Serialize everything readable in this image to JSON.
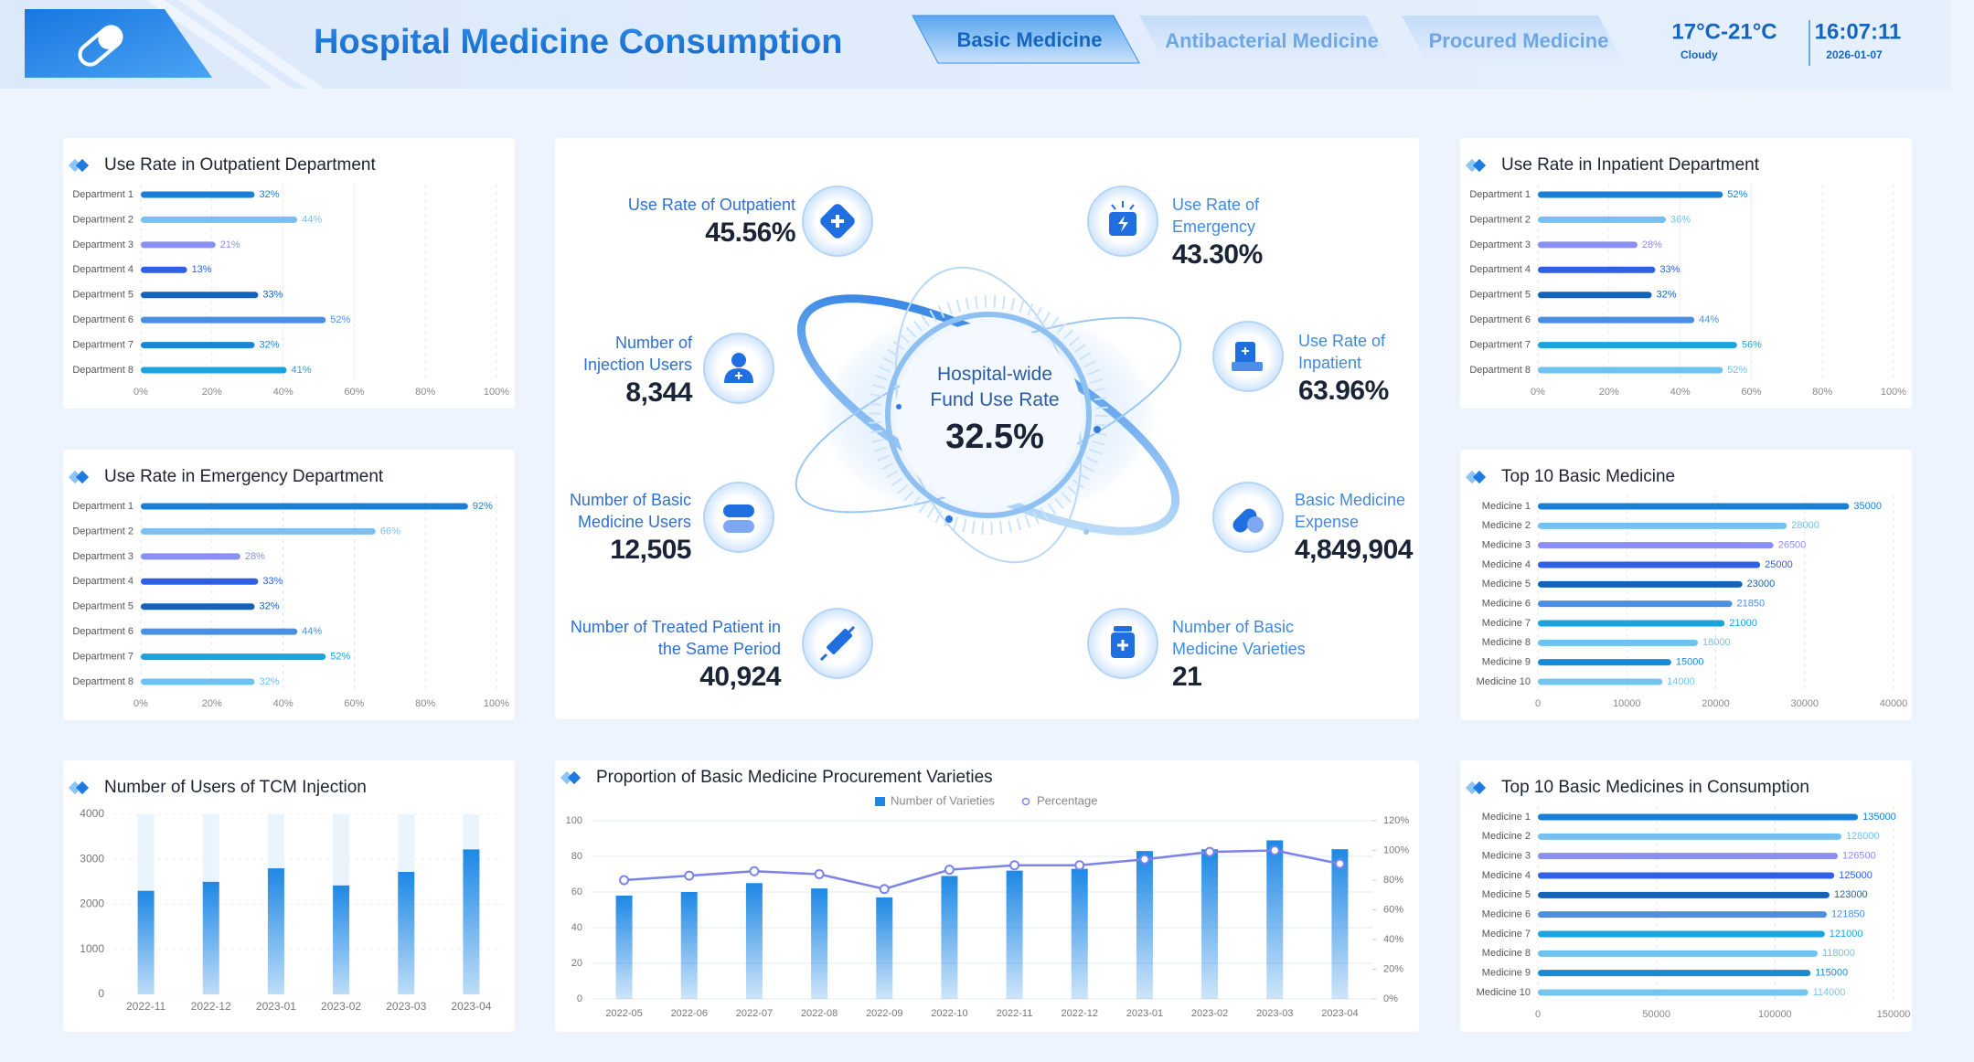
{
  "header": {
    "title": "Hospital Medicine Consumption",
    "tabs": [
      "Basic Medicine",
      "Antibacterial Medicine",
      "Procured Medicine"
    ],
    "weather": {
      "temperature": "17°C-21°C",
      "condition": "Cloudy"
    },
    "time": "16:07:11",
    "date": "2026-01-07"
  },
  "center": {
    "label": "Hospital-wide Fund Use Rate",
    "value": "32.5%"
  },
  "kpis": [
    {
      "label": "Use Rate of Outpatient",
      "value": "45.56%"
    },
    {
      "label": "Use Rate of Emergency",
      "value": "43.30%"
    },
    {
      "label": "Number of Injection Users",
      "value": "8,344"
    },
    {
      "label": "Use Rate of Inpatient",
      "value": "63.96%"
    },
    {
      "label": "Number of Basic Medicine Users",
      "value": "12,505"
    },
    {
      "label": "Basic Medicine Expense",
      "value": "4,849,904"
    },
    {
      "label": "Number of Treated Patient in the Same Period",
      "value": "40,924"
    },
    {
      "label": "Number of Basic Medicine Varieties",
      "value": "21"
    }
  ],
  "chart_data": [
    {
      "type": "hbar",
      "title": "Use Rate in Outpatient Department",
      "categories": [
        "Department 1",
        "Department 2",
        "Department 3",
        "Department 4",
        "Department 5",
        "Department 6",
        "Department 7",
        "Department 8"
      ],
      "values": [
        32,
        44,
        21,
        13,
        33,
        52,
        32,
        41
      ],
      "value_labels": [
        "32%",
        "44%",
        "21%",
        "13%",
        "33%",
        "52%",
        "32%",
        "41%"
      ],
      "colors": [
        "#1a7fd6",
        "#74c0f0",
        "#8b8ef2",
        "#2f5fe3",
        "#1463b8",
        "#4b8fe0",
        "#1b86d8",
        "#1aa3dc"
      ],
      "xlim": [
        0,
        100
      ],
      "xticks": [
        {
          "value": 0,
          "label": "0%"
        },
        {
          "value": 20,
          "label": "20%"
        },
        {
          "value": 40,
          "label": "40%"
        },
        {
          "value": 60,
          "label": "60%"
        },
        {
          "value": 80,
          "label": "80%"
        },
        {
          "value": 100,
          "label": "100%"
        }
      ],
      "grid": true
    },
    {
      "type": "hbar",
      "title": "Use Rate in Emergency Department",
      "categories": [
        "Department 1",
        "Department 2",
        "Department 3",
        "Department 4",
        "Department 5",
        "Department 6",
        "Department 7",
        "Department 8"
      ],
      "values": [
        92,
        66,
        28,
        33,
        32,
        44,
        52,
        32
      ],
      "value_labels": [
        "92%",
        "66%",
        "28%",
        "33%",
        "32%",
        "44%",
        "52%",
        "32%"
      ],
      "colors": [
        "#1a7fd6",
        "#7cc0f2",
        "#8b8ef2",
        "#2f5fe3",
        "#1463b8",
        "#4b8fe0",
        "#1aa3dc",
        "#6ec2f0"
      ],
      "xlim": [
        0,
        100
      ],
      "xticks": [
        {
          "value": 0,
          "label": "0%"
        },
        {
          "value": 20,
          "label": "20%"
        },
        {
          "value": 40,
          "label": "40%"
        },
        {
          "value": 60,
          "label": "60%"
        },
        {
          "value": 80,
          "label": "80%"
        },
        {
          "value": 100,
          "label": "100%"
        }
      ],
      "grid": true
    },
    {
      "type": "bar",
      "title": "Number of Users of TCM Injection",
      "categories": [
        "2022-11",
        "2022-12",
        "2023-01",
        "2023-02",
        "2023-03",
        "2023-04"
      ],
      "values": [
        2300,
        2500,
        2800,
        2420,
        2720,
        3220
      ],
      "color": "#1e88e5",
      "ylim": [
        0,
        4000
      ],
      "yticks": [
        0,
        1000,
        2000,
        3000,
        4000
      ],
      "grid": true
    },
    {
      "type": "combo",
      "title": "Proportion of Basic Medicine Procurement Varieties",
      "categories": [
        "2022-05",
        "2022-06",
        "2022-07",
        "2022-08",
        "2022-09",
        "2022-10",
        "2022-11",
        "2022-12",
        "2023-01",
        "2023-02",
        "2023-03",
        "2023-04"
      ],
      "series": [
        {
          "name": "Number of Varieties",
          "type": "bar",
          "color": "#1e88e5",
          "values": [
            58,
            60,
            65,
            62,
            57,
            69,
            72,
            73,
            83,
            84,
            89,
            84
          ]
        },
        {
          "name": "Percentage",
          "type": "line",
          "axis": "y2",
          "color": "#7b83eb",
          "values": [
            80,
            83,
            86,
            84,
            74,
            87,
            90,
            90,
            94,
            99,
            100,
            91
          ]
        }
      ],
      "ylim": [
        0,
        100
      ],
      "yticks": [
        0,
        20,
        40,
        60,
        80,
        100
      ],
      "y2lim": [
        0,
        120
      ],
      "y2ticks": [
        {
          "value": 0,
          "label": "0%"
        },
        {
          "value": 20,
          "label": "20%"
        },
        {
          "value": 40,
          "label": "40%"
        },
        {
          "value": 60,
          "label": "60%"
        },
        {
          "value": 80,
          "label": "80%"
        },
        {
          "value": 100,
          "label": "100%"
        },
        {
          "value": 120,
          "label": "120%"
        }
      ],
      "grid": true,
      "legend": "top"
    },
    {
      "type": "hbar",
      "title": "Use Rate in Inpatient Department",
      "categories": [
        "Department 1",
        "Department 2",
        "Department 3",
        "Department 4",
        "Department 5",
        "Department 6",
        "Department 7",
        "Department 8"
      ],
      "values": [
        52,
        36,
        28,
        33,
        32,
        44,
        56,
        52
      ],
      "value_labels": [
        "52%",
        "36%",
        "28%",
        "33%",
        "32%",
        "44%",
        "56%",
        "52%"
      ],
      "colors": [
        "#1a7fd6",
        "#74c0f0",
        "#8b8ef2",
        "#2f5fe3",
        "#1463b8",
        "#4b8fe0",
        "#1aa3dc",
        "#6ec2f0"
      ],
      "xlim": [
        0,
        100
      ],
      "xticks": [
        {
          "value": 0,
          "label": "0%"
        },
        {
          "value": 20,
          "label": "20%"
        },
        {
          "value": 40,
          "label": "40%"
        },
        {
          "value": 60,
          "label": "60%"
        },
        {
          "value": 80,
          "label": "80%"
        },
        {
          "value": 100,
          "label": "100%"
        }
      ],
      "grid": true
    },
    {
      "type": "hbar",
      "title": "Top 10 Basic Medicine",
      "categories": [
        "Medicine 1",
        "Medicine 2",
        "Medicine 3",
        "Medicine 4",
        "Medicine 5",
        "Medicine 6",
        "Medicine 7",
        "Medicine 8",
        "Medicine 9",
        "Medicine 10"
      ],
      "values": [
        35000,
        28000,
        26500,
        25000,
        23000,
        21850,
        21000,
        18000,
        15000,
        14000
      ],
      "colors": [
        "#1a7fd6",
        "#74c0f0",
        "#8b8ef2",
        "#2f5fe3",
        "#1463b8",
        "#4b8fe0",
        "#1aa3dc",
        "#6ec2f0",
        "#1a8ad6",
        "#74c4f0"
      ],
      "xlim": [
        0,
        40000
      ],
      "xticks": [
        0,
        10000,
        20000,
        30000,
        40000
      ],
      "grid": true
    },
    {
      "type": "hbar",
      "title": "Top 10 Basic Medicines in Consumption",
      "categories": [
        "Medicine 1",
        "Medicine 2",
        "Medicine 3",
        "Medicine 4",
        "Medicine 5",
        "Medicine 6",
        "Medicine 7",
        "Medicine 8",
        "Medicine 9",
        "Medicine 10"
      ],
      "values": [
        135000,
        128000,
        126500,
        125000,
        123000,
        121850,
        121000,
        118000,
        115000,
        114000
      ],
      "colors": [
        "#1a7fd6",
        "#74c0f0",
        "#8b8ef2",
        "#2f5fe3",
        "#1463b8",
        "#4b8fe0",
        "#1aa3dc",
        "#6ec2f0",
        "#1a8ad6",
        "#74c4f0"
      ],
      "xlim": [
        0,
        150000
      ],
      "xticks": [
        0,
        50000,
        100000,
        150000
      ],
      "grid": true
    }
  ]
}
